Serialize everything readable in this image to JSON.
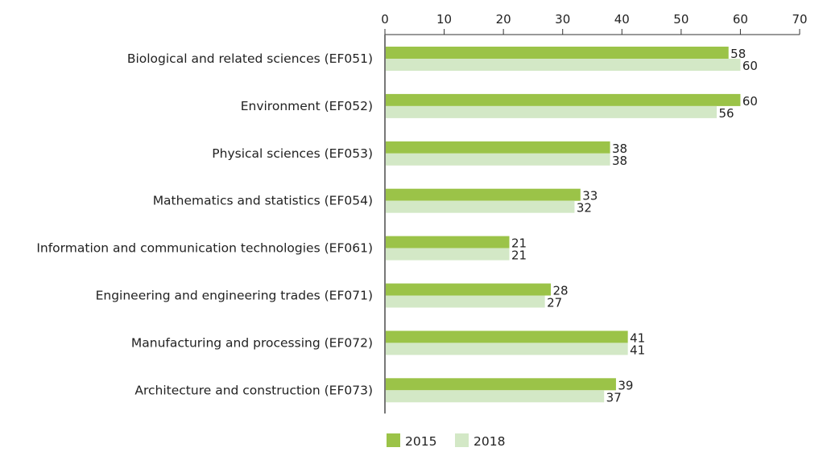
{
  "chart_data": {
    "type": "bar",
    "orientation": "horizontal",
    "title": "",
    "xlabel": "",
    "ylabel": "",
    "xlim": [
      0,
      70
    ],
    "x_ticks": [
      0,
      10,
      20,
      30,
      40,
      50,
      60,
      70
    ],
    "x_axis_position": "top",
    "grid": false,
    "legend_position": "bottom",
    "categories": [
      "Biological and related sciences (EF051)",
      "Environment (EF052)",
      "Physical sciences (EF053)",
      "Mathematics and statistics (EF054)",
      "Information and communication technologies (EF061)",
      "Engineering and engineering trades (EF071)",
      "Manufacturing and processing (EF072)",
      "Architecture and construction (EF073)"
    ],
    "series": [
      {
        "name": "2015",
        "color": "#9bc348",
        "values": [
          58,
          60,
          38,
          33,
          21,
          28,
          41,
          39
        ]
      },
      {
        "name": "2018",
        "color": "#d3e8c6",
        "values": [
          60,
          56,
          38,
          32,
          21,
          27,
          41,
          37
        ]
      }
    ]
  }
}
